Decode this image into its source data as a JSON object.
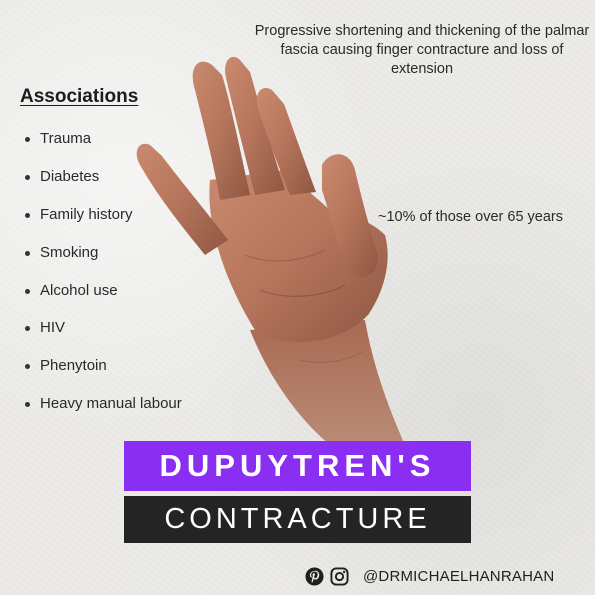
{
  "description": "Progressive shortening and thickening of the palmar fascia causing finger contracture and loss of extension",
  "associations": {
    "heading": "Associations",
    "items": [
      "Trauma",
      "Diabetes",
      "Family history",
      "Smoking",
      "Alcohol use",
      "HIV",
      "Phenytoin",
      "Heavy manual labour"
    ]
  },
  "prevalence": "~10% of those over 65 years",
  "title": {
    "line1": "DUPUYTREN'S",
    "line2": "CONTRACTURE"
  },
  "footer": {
    "handle": "@DRMICHAELHANRAHAN",
    "icons": [
      "pinterest-icon",
      "instagram-icon"
    ]
  },
  "colors": {
    "accent": "#8a2ef2",
    "dark_bar": "#242424",
    "background": "#eeedeb"
  }
}
